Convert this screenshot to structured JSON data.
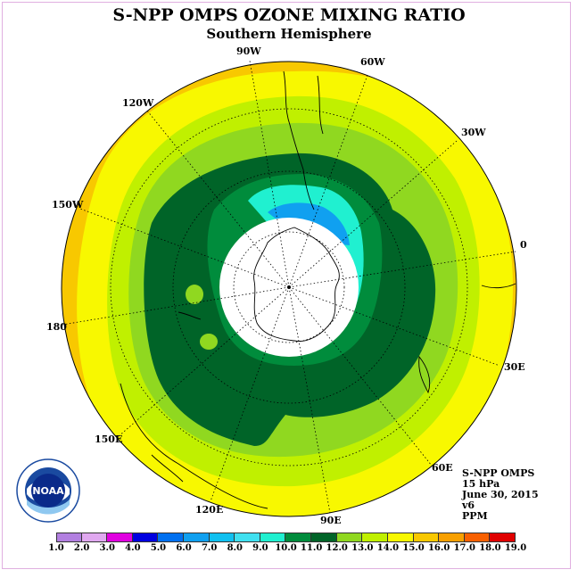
{
  "title": "S-NPP OMPS OZONE MIXING RATIO",
  "subtitle": "Southern Hemisphere",
  "longitude_labels": [
    "90W",
    "60W",
    "30W",
    "0",
    "30E",
    "60E",
    "90E",
    "120E",
    "150E",
    "180",
    "150W",
    "120W"
  ],
  "info": {
    "instrument": "S-NPP OMPS",
    "level": "15 hPa",
    "date": "June 30, 2015",
    "version": "v6",
    "units": "PPM"
  },
  "colorbar": {
    "ticks": [
      "1.0",
      "2.0",
      "3.0",
      "4.0",
      "5.0",
      "6.0",
      "7.0",
      "8.0",
      "9.0",
      "10.0",
      "11.0",
      "12.0",
      "13.0",
      "14.0",
      "15.0",
      "16.0",
      "17.0",
      "18.0",
      "19.0"
    ],
    "colors": [
      "#b27fe0",
      "#e0a8f0",
      "#e000e0",
      "#0000e0",
      "#0070f0",
      "#10a0f0",
      "#10c0f0",
      "#40e0f0",
      "#20f0d0",
      "#008c3c",
      "#006428",
      "#90d820",
      "#c0f000",
      "#f8f800",
      "#f8c800",
      "#f8a000",
      "#f86000",
      "#e00000",
      "#8b5a3c"
    ]
  },
  "logo": {
    "text": "NOAA",
    "icon": "noaa-logo"
  }
}
